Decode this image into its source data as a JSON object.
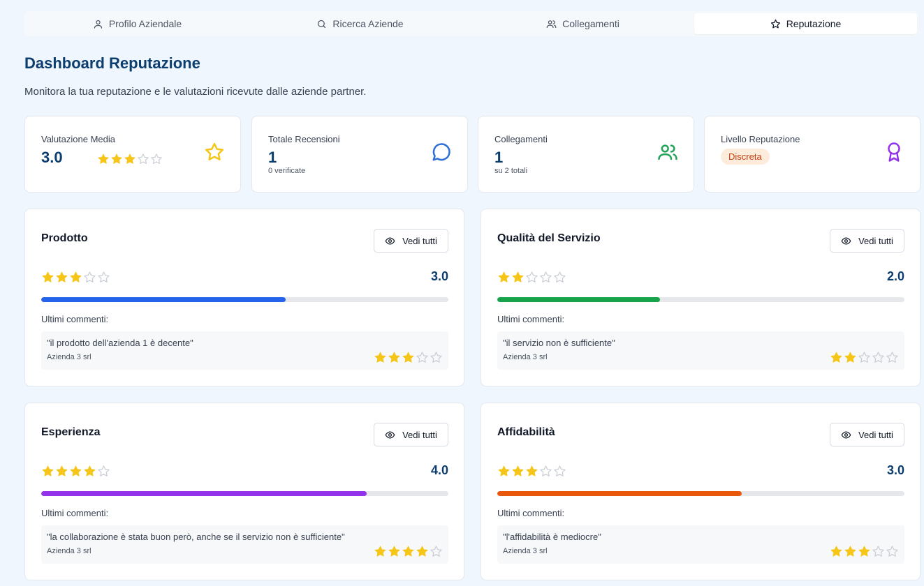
{
  "tabs": [
    {
      "label": "Profilo Aziendale",
      "icon": "user-icon",
      "active": false
    },
    {
      "label": "Ricerca Aziende",
      "icon": "search-icon",
      "active": false
    },
    {
      "label": "Collegamenti",
      "icon": "users-icon",
      "active": false
    },
    {
      "label": "Reputazione",
      "icon": "star-icon",
      "active": true
    }
  ],
  "header": {
    "title": "Dashboard Reputazione",
    "subtitle": "Monitora la tua reputazione e le valutazioni ricevute dalle aziende partner."
  },
  "stats": {
    "rating": {
      "label": "Valutazione Media",
      "value": "3.0",
      "stars": 3,
      "icon": "star-outline-icon",
      "icon_color": "#f5c518"
    },
    "reviews": {
      "label": "Totale Recensioni",
      "value": "1",
      "sub": "0 verificate",
      "icon": "message-circle-icon",
      "icon_color": "#2f6fd6"
    },
    "connections": {
      "label": "Collegamenti",
      "value": "1",
      "sub": "su 2 totali",
      "icon": "users-icon",
      "icon_color": "#22a35a"
    },
    "level": {
      "label": "Livello Reputazione",
      "badge": "Discreta",
      "icon": "award-icon",
      "icon_color": "#9333ea"
    }
  },
  "view_all_label": "Vedi tutti",
  "comments_label": "Ultimi commenti:",
  "categories": [
    {
      "title": "Prodotto",
      "stars": 3,
      "score": "3.0",
      "fill": 0.6,
      "color": "#2563eb",
      "comment": {
        "text": "\"il prodotto dell'azienda 1 è decente\"",
        "author": "Azienda 3 srl",
        "stars": 3
      }
    },
    {
      "title": "Qualità del Servizio",
      "stars": 2,
      "score": "2.0",
      "fill": 0.4,
      "color": "#16a34a",
      "comment": {
        "text": "\"il servizio non è sufficiente\"",
        "author": "Azienda 3 srl",
        "stars": 2
      }
    },
    {
      "title": "Esperienza",
      "stars": 4,
      "score": "4.0",
      "fill": 0.8,
      "color": "#9333ea",
      "comment": {
        "text": "\"la collaborazione è stata buon però, anche se il servizio non è sufficiente\"",
        "author": "Azienda 3 srl",
        "stars": 4
      }
    },
    {
      "title": "Affidabilità",
      "stars": 3,
      "score": "3.0",
      "fill": 0.6,
      "color": "#ea580c",
      "comment": {
        "text": "\"l'affidabilità è mediocre\"",
        "author": "Azienda 3 srl",
        "stars": 3
      }
    }
  ],
  "star_colors": {
    "filled": "#f5c518",
    "empty": "#c9ced6"
  }
}
